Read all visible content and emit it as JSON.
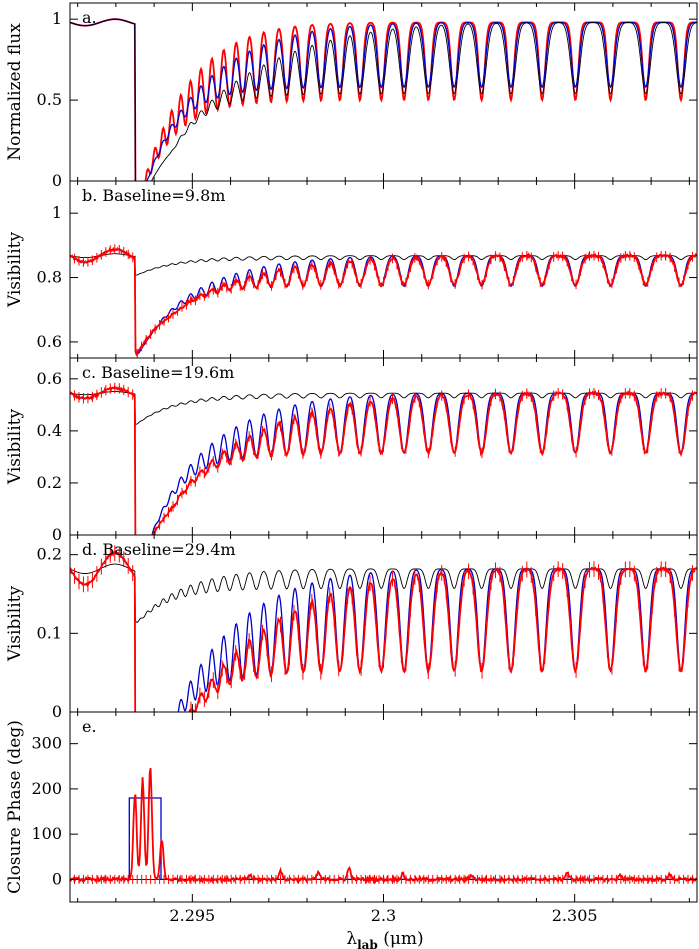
{
  "chart_data": [
    {
      "type": "line",
      "panel_label": "a.",
      "ylabel": "Normalized flux",
      "xlim": [
        2.2918,
        2.3082
      ],
      "ylim": [
        0,
        1.1
      ],
      "yticks": [
        0,
        0.5,
        1
      ],
      "ytick_labels": [
        "0",
        "0.5",
        "1"
      ],
      "continuum": 0.98,
      "band_depth": 0.66,
      "series": [
        {
          "color": "#ff0000",
          "line_depth": 0.48,
          "style": "line"
        },
        {
          "color": "#0000cc",
          "line_depth": 0.4,
          "style": "line"
        },
        {
          "color": "#000000",
          "line_depth": 0.44,
          "style": "line"
        }
      ]
    },
    {
      "type": "line",
      "panel_label": "b. Baseline=9.8m",
      "ylabel": "Visibility",
      "xlim": [
        2.2918,
        2.3082
      ],
      "ylim": [
        0.55,
        1.1
      ],
      "yticks": [
        0.6,
        0.8,
        1
      ],
      "ytick_labels": [
        "0.6",
        "0.8",
        "1"
      ],
      "continuum": 0.868,
      "band_depth": 0.2,
      "series": [
        {
          "color": "#000000",
          "line_depth": 0.012,
          "style": "line"
        },
        {
          "color": "#0000cc",
          "line_depth": 0.095,
          "style": "line"
        },
        {
          "color": "#ff0000",
          "line_depth": 0.09,
          "style": "errorbar",
          "err": 0.015
        }
      ]
    },
    {
      "type": "line",
      "panel_label": "c. Baseline=19.6m",
      "ylabel": "Visibility",
      "xlim": [
        2.2918,
        2.3082
      ],
      "ylim": [
        0,
        0.68
      ],
      "yticks": [
        0,
        0.2,
        0.4,
        0.6
      ],
      "ytick_labels": [
        "0",
        "0.2",
        "0.4",
        "0.6"
      ],
      "continuum": 0.545,
      "band_depth": 0.42,
      "series": [
        {
          "color": "#000000",
          "line_depth": 0.018,
          "style": "line"
        },
        {
          "color": "#0000cc",
          "line_depth": 0.23,
          "style": "line"
        },
        {
          "color": "#ff0000",
          "line_depth": 0.23,
          "style": "errorbar",
          "err": 0.02
        }
      ]
    },
    {
      "type": "line",
      "panel_label": "d. Baseline=29.4m",
      "ylabel": "Visibility",
      "xlim": [
        2.2918,
        2.3082
      ],
      "ylim": [
        0,
        0.225
      ],
      "yticks": [
        0,
        0.1,
        0.2
      ],
      "ytick_labels": [
        "0",
        "0.1",
        "0.2"
      ],
      "continuum": 0.182,
      "band_depth": 0.175,
      "series": [
        {
          "color": "#000000",
          "line_depth": 0.025,
          "style": "line"
        },
        {
          "color": "#0000cc",
          "line_depth": 0.13,
          "style": "line"
        },
        {
          "color": "#ff0000",
          "line_depth": 0.13,
          "style": "errorbar",
          "err": 0.01
        }
      ]
    },
    {
      "type": "line",
      "panel_label": "e.",
      "ylabel": "Closure Phase (deg)",
      "xlabel_main": "λ",
      "xlabel_sub": "lab",
      "xlabel_unit": " (μm)",
      "xlim": [
        2.2918,
        2.3082
      ],
      "ylim": [
        -50,
        370
      ],
      "yticks": [
        0,
        100,
        200,
        300
      ],
      "ytick_labels": [
        "0",
        "100",
        "200",
        "300"
      ],
      "xticks": [
        2.295,
        2.3,
        2.305
      ],
      "xtick_labels": [
        "2.295",
        "2.3",
        "2.305"
      ],
      "series": [
        {
          "color": "#000000",
          "style": "line",
          "values_desc": "flat at 0"
        },
        {
          "color": "#0000cc",
          "style": "step",
          "x": [
            2.2918,
            2.29335,
            2.29335,
            2.29418,
            2.29418,
            2.3082
          ],
          "y": [
            0,
            0,
            180,
            180,
            0,
            0
          ]
        },
        {
          "color": "#ff0000",
          "style": "errorbar",
          "spike_x": [
            2.2935,
            2.2937,
            2.2939,
            2.2942,
            2.2965,
            2.2973,
            2.2983,
            2.2991,
            2.3005,
            2.3023,
            2.3048,
            2.3062,
            2.3075
          ],
          "spike_y": [
            190,
            225,
            250,
            90,
            10,
            20,
            15,
            25,
            12,
            10,
            15,
            10,
            12
          ]
        }
      ]
    }
  ]
}
